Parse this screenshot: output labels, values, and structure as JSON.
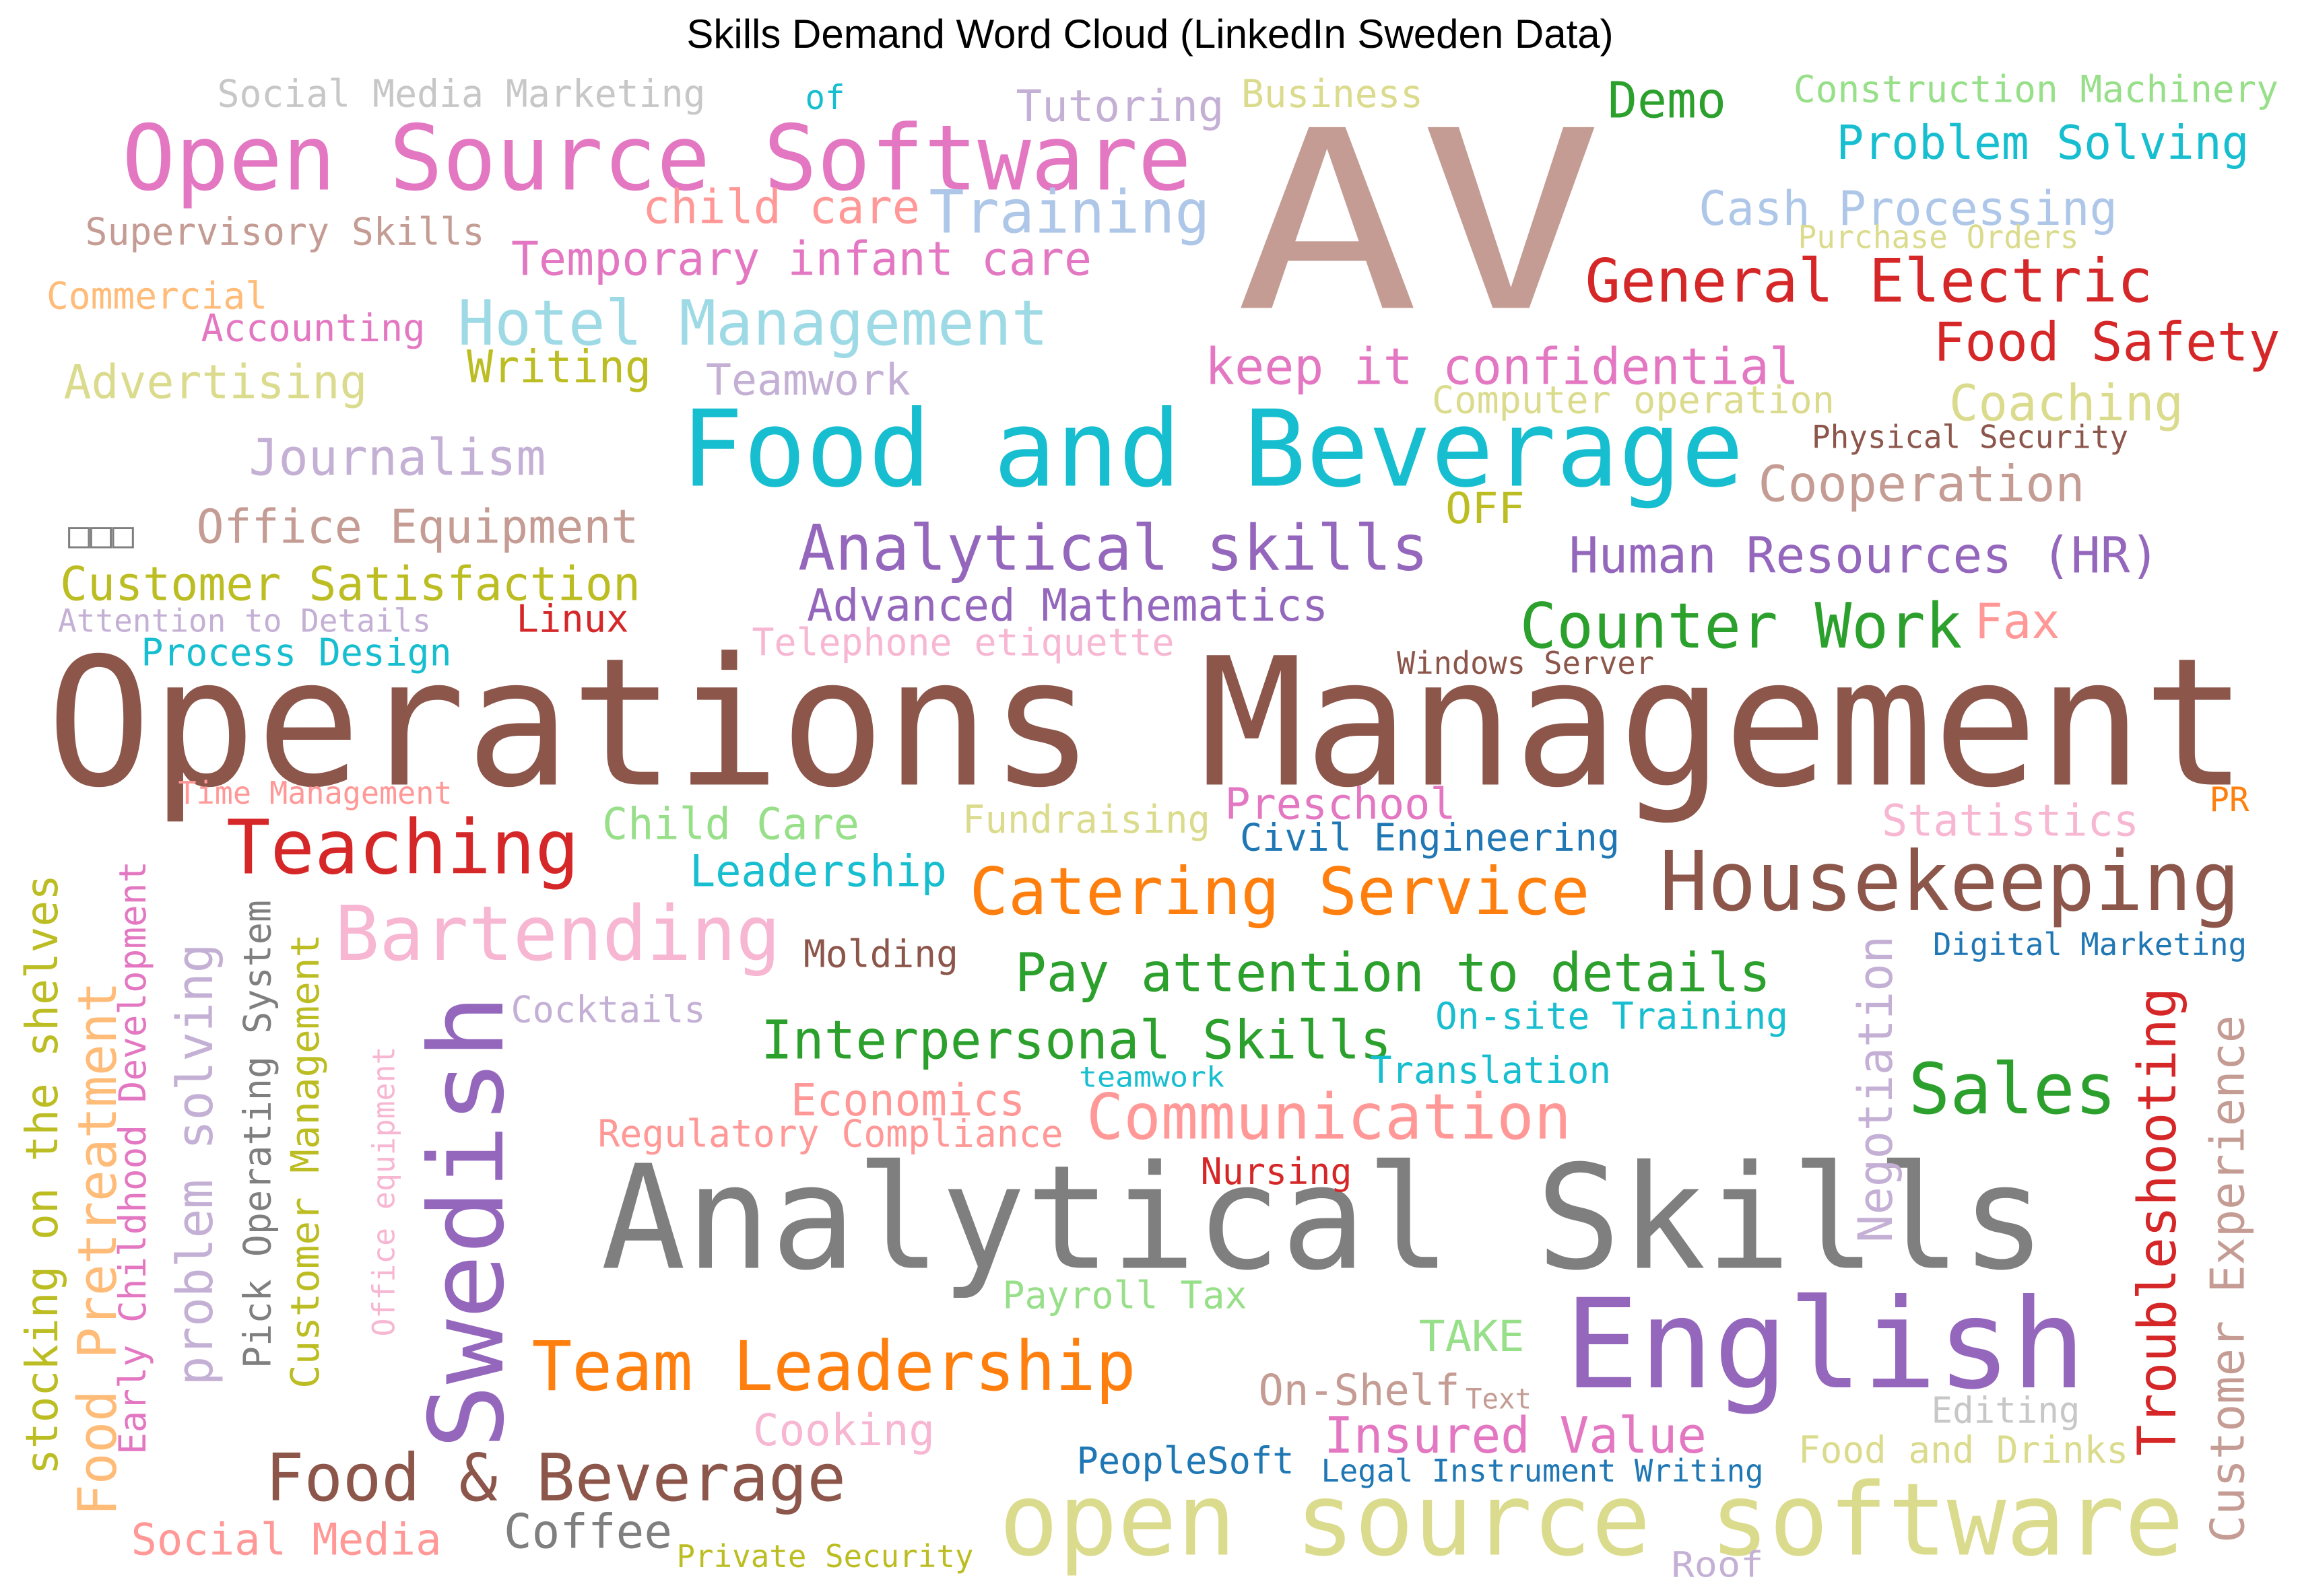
{
  "title": "Skills Demand Word Cloud (LinkedIn Sweden Data)",
  "words": [
    {
      "text": "AV",
      "color": "#c49c94"
    },
    {
      "text": "Operations Management",
      "color": "#8c564b"
    },
    {
      "text": "Analytical Skills",
      "color": "#7f7f7f"
    },
    {
      "text": "Food and Beverage",
      "color": "#17becf"
    },
    {
      "text": "Open Source Software",
      "color": "#e377c2"
    },
    {
      "text": "open source software",
      "color": "#dbdb8d"
    },
    {
      "text": "English",
      "color": "#9467bd"
    },
    {
      "text": "Swedish",
      "color": "#9467bd"
    },
    {
      "text": "Housekeeping",
      "color": "#8c564b"
    },
    {
      "text": "Food & Beverage",
      "color": "#8c564b"
    },
    {
      "text": "Bartending",
      "color": "#f7b6d2"
    },
    {
      "text": "Team Leadership",
      "color": "#ff7f0e"
    },
    {
      "text": "Teaching",
      "color": "#d62728"
    },
    {
      "text": "Catering Service",
      "color": "#ff7f0e"
    },
    {
      "text": "Hotel Management",
      "color": "#9edae5"
    },
    {
      "text": "Analytical skills",
      "color": "#9467bd"
    },
    {
      "text": "General Electric",
      "color": "#d62728"
    },
    {
      "text": "Sales",
      "color": "#2ca02c"
    },
    {
      "text": "Interpersonal Skills",
      "color": "#2ca02c"
    },
    {
      "text": "Pay attention to details",
      "color": "#2ca02c"
    },
    {
      "text": "Communication",
      "color": "#ff9896"
    },
    {
      "text": "Troubleshooting",
      "color": "#d62728"
    },
    {
      "text": "Counter Work",
      "color": "#2ca02c"
    },
    {
      "text": "Training",
      "color": "#aec7e8"
    },
    {
      "text": "Food Safety",
      "color": "#d62728"
    },
    {
      "text": "keep it confidential",
      "color": "#e377c2"
    },
    {
      "text": "Human Resources (HR)",
      "color": "#9467bd"
    },
    {
      "text": "Customer Experience",
      "color": "#c49c94"
    },
    {
      "text": "Insured Value",
      "color": "#e377c2"
    },
    {
      "text": "Problem Solving",
      "color": "#17becf"
    },
    {
      "text": "Coaching",
      "color": "#dbdb8d"
    },
    {
      "text": "Cooperation",
      "color": "#c49c94"
    },
    {
      "text": "Negotiation",
      "color": "#c5b0d5"
    },
    {
      "text": "Advanced Mathematics",
      "color": "#9467bd"
    },
    {
      "text": "Customer Satisfaction",
      "color": "#bcbd22"
    },
    {
      "text": "Journalism",
      "color": "#c5b0d5"
    },
    {
      "text": "Office Equipment",
      "color": "#c49c94"
    },
    {
      "text": "Temporary infant care",
      "color": "#e377c2"
    },
    {
      "text": "child care",
      "color": "#ff9896"
    },
    {
      "text": "Advertising",
      "color": "#dbdb8d"
    },
    {
      "text": "Demo",
      "color": "#2ca02c"
    },
    {
      "text": "Tutoring",
      "color": "#c5b0d5"
    },
    {
      "text": "Cash Processing",
      "color": "#aec7e8"
    },
    {
      "text": "Statistics",
      "color": "#f7b6d2"
    },
    {
      "text": "Child Care",
      "color": "#98df8a"
    },
    {
      "text": "Preschool",
      "color": "#e377c2"
    },
    {
      "text": "problem solving",
      "color": "#c5b0d5"
    },
    {
      "text": "Food Pretreatment",
      "color": "#ffbb78"
    },
    {
      "text": "stocking on the shelves",
      "color": "#bcbd22"
    },
    {
      "text": "Economics",
      "color": "#ff9896"
    },
    {
      "text": "Construction Machinery",
      "color": "#98df8a"
    },
    {
      "text": "Social Media Marketing",
      "color": "#c7c7c7"
    },
    {
      "text": "Supervisory Skills",
      "color": "#c49c94"
    },
    {
      "text": "Accounting",
      "color": "#e377c2"
    },
    {
      "text": "Commercial",
      "color": "#ffbb78"
    },
    {
      "text": "Writing",
      "color": "#bcbd22"
    },
    {
      "text": "Teamwork",
      "color": "#c5b0d5"
    },
    {
      "text": "Business",
      "color": "#dbdb8d"
    },
    {
      "text": "of",
      "color": "#17becf"
    },
    {
      "text": "Computer operation",
      "color": "#dbdb8d"
    },
    {
      "text": "Physical Security",
      "color": "#8c564b"
    },
    {
      "text": "Purchase Orders",
      "color": "#dbdb8d"
    },
    {
      "text": "OFF",
      "color": "#bcbd22"
    },
    {
      "text": "□□□",
      "color": "#7f7f7f"
    },
    {
      "text": "Attention to Details",
      "color": "#c5b0d5"
    },
    {
      "text": "Linux",
      "color": "#d62728"
    },
    {
      "text": "Process Design",
      "color": "#17becf"
    },
    {
      "text": "Telephone etiquette",
      "color": "#f7b6d2"
    },
    {
      "text": "Windows Server",
      "color": "#8c564b"
    },
    {
      "text": "Fax",
      "color": "#ff9896"
    },
    {
      "text": "Time Management",
      "color": "#ff9896"
    },
    {
      "text": "Fundraising",
      "color": "#dbdb8d"
    },
    {
      "text": "Civil Engineering",
      "color": "#1f77b4"
    },
    {
      "text": "PR",
      "color": "#ff7f0e"
    },
    {
      "text": "Leadership",
      "color": "#17becf"
    },
    {
      "text": "Molding",
      "color": "#8c564b"
    },
    {
      "text": "Digital Marketing",
      "color": "#1f77b4"
    },
    {
      "text": "Cocktails",
      "color": "#c5b0d5"
    },
    {
      "text": "On-site Training",
      "color": "#17becf"
    },
    {
      "text": "teamwork",
      "color": "#17becf"
    },
    {
      "text": "Translation",
      "color": "#17becf"
    },
    {
      "text": "Regulatory Compliance",
      "color": "#ff9896"
    },
    {
      "text": "Nursing",
      "color": "#d62728"
    },
    {
      "text": "Payroll Tax",
      "color": "#98df8a"
    },
    {
      "text": "TAKE",
      "color": "#98df8a"
    },
    {
      "text": "On-Shelf",
      "color": "#c49c94"
    },
    {
      "text": "Text",
      "color": "#c49c94"
    },
    {
      "text": "Editing",
      "color": "#c7c7c7"
    },
    {
      "text": "Cooking",
      "color": "#f7b6d2"
    },
    {
      "text": "PeopleSoft",
      "color": "#1f77b4"
    },
    {
      "text": "Legal Instrument Writing",
      "color": "#1f77b4"
    },
    {
      "text": "Food and Drinks",
      "color": "#dbdb8d"
    },
    {
      "text": "Coffee",
      "color": "#7f7f7f"
    },
    {
      "text": "Social Media",
      "color": "#ff9896"
    },
    {
      "text": "Private Security",
      "color": "#bcbd22"
    },
    {
      "text": "Roof",
      "color": "#c5b0d5"
    },
    {
      "text": "Early Childhood Development",
      "color": "#e377c2"
    },
    {
      "text": "Pick Operating System",
      "color": "#7f7f7f"
    },
    {
      "text": "Customer Management",
      "color": "#bcbd22"
    },
    {
      "text": "Office equipment",
      "color": "#f7b6d2"
    }
  ]
}
